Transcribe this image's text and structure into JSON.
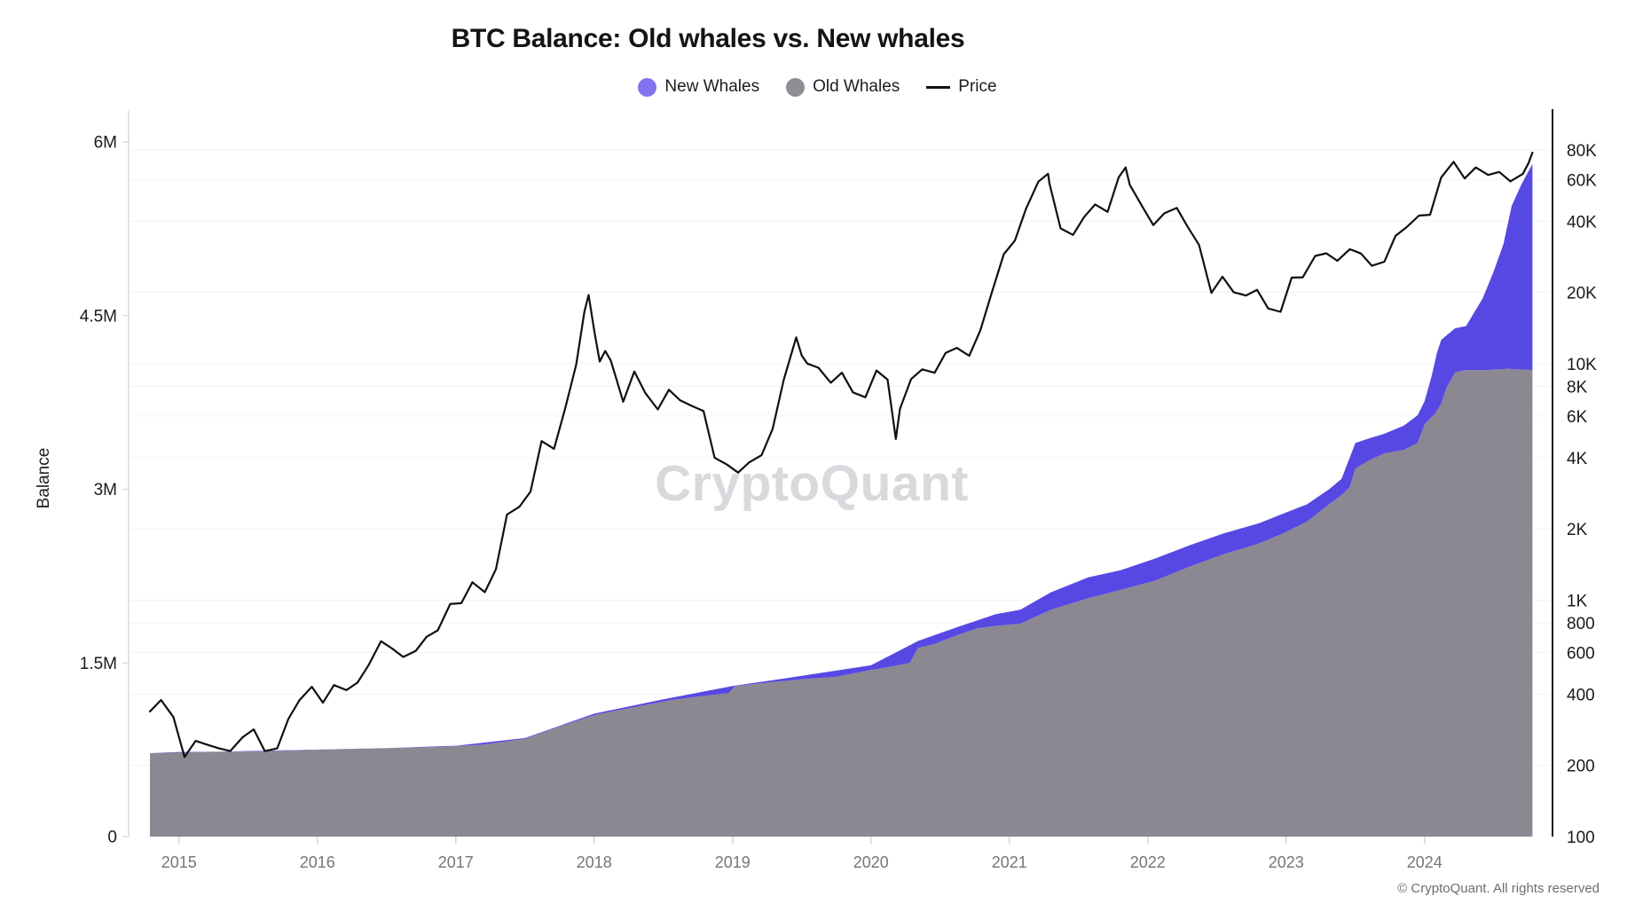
{
  "header": {
    "title": "BTC Balance: Old whales vs. New whales"
  },
  "legend": {
    "items": [
      {
        "label": "New Whales",
        "marker": "dot",
        "color": "#8274ee"
      },
      {
        "label": "Old Whales",
        "marker": "dot",
        "color": "#8f8d96"
      },
      {
        "label": "Price",
        "marker": "line",
        "color": "#0f1014"
      }
    ]
  },
  "watermark": {
    "text": "CryptoQuant"
  },
  "footer": {
    "copyright": "© CryptoQuant. All rights reserved"
  },
  "chart_data": {
    "type": "combo-area-line",
    "title": "BTC Balance: Old whales vs. New whales",
    "left_axis": {
      "label": "Balance",
      "scale": "linear",
      "unit": "BTC",
      "ylim_m": [
        0,
        6
      ],
      "ticks": [
        {
          "value_m": 0,
          "label": "0"
        },
        {
          "value_m": 1.5,
          "label": "1.5M"
        },
        {
          "value_m": 3,
          "label": "3M"
        },
        {
          "value_m": 4.5,
          "label": "4.5M"
        },
        {
          "value_m": 6,
          "label": "6M"
        }
      ]
    },
    "right_axis": {
      "label": "Price",
      "scale": "log",
      "unit": "USD",
      "ylim": [
        100,
        90000
      ],
      "ticks": [
        {
          "value": 80000,
          "label": "80K"
        },
        {
          "value": 60000,
          "label": "60K"
        },
        {
          "value": 40000,
          "label": "40K"
        },
        {
          "value": 20000,
          "label": "20K"
        },
        {
          "value": 10000,
          "label": "10K"
        },
        {
          "value": 8000,
          "label": "8K"
        },
        {
          "value": 6000,
          "label": "6K"
        },
        {
          "value": 4000,
          "label": "4K"
        },
        {
          "value": 2000,
          "label": "2K"
        },
        {
          "value": 1000,
          "label": "1K"
        },
        {
          "value": 800,
          "label": "800"
        },
        {
          "value": 600,
          "label": "600"
        },
        {
          "value": 400,
          "label": "400"
        },
        {
          "value": 200,
          "label": "200"
        },
        {
          "value": 100,
          "label": "100"
        }
      ]
    },
    "x_axis": {
      "range_decimal_years": [
        2014.79,
        2024.78
      ],
      "ticks": [
        {
          "value": 2015,
          "label": "2015"
        },
        {
          "value": 2016,
          "label": "2016"
        },
        {
          "value": 2017,
          "label": "2017"
        },
        {
          "value": 2018,
          "label": "2018"
        },
        {
          "value": 2019,
          "label": "2019"
        },
        {
          "value": 2020,
          "label": "2020"
        },
        {
          "value": 2021,
          "label": "2021"
        },
        {
          "value": 2022,
          "label": "2022"
        },
        {
          "value": 2023,
          "label": "2023"
        },
        {
          "value": 2024,
          "label": "2024"
        }
      ]
    },
    "series": [
      {
        "name": "Old Whales",
        "type": "area",
        "axis": "left",
        "unit": "M BTC",
        "color": "#8b8892",
        "points": [
          [
            2014.79,
            0.72
          ],
          [
            2015.0,
            0.73
          ],
          [
            2015.5,
            0.735
          ],
          [
            2016.0,
            0.75
          ],
          [
            2016.5,
            0.765
          ],
          [
            2016.9,
            0.775
          ],
          [
            2017.2,
            0.795
          ],
          [
            2017.5,
            0.845
          ],
          [
            2017.75,
            0.95
          ],
          [
            2018.0,
            1.05
          ],
          [
            2018.12,
            1.08
          ],
          [
            2018.3,
            1.12
          ],
          [
            2018.56,
            1.18
          ],
          [
            2018.75,
            1.21
          ],
          [
            2018.97,
            1.24
          ],
          [
            2019.02,
            1.3
          ],
          [
            2019.25,
            1.33
          ],
          [
            2019.51,
            1.36
          ],
          [
            2019.75,
            1.38
          ],
          [
            2020.0,
            1.44
          ],
          [
            2020.15,
            1.47
          ],
          [
            2020.28,
            1.5
          ],
          [
            2020.34,
            1.63
          ],
          [
            2020.45,
            1.66
          ],
          [
            2020.6,
            1.73
          ],
          [
            2020.77,
            1.8
          ],
          [
            2020.9,
            1.82
          ],
          [
            2021.08,
            1.84
          ],
          [
            2021.3,
            1.96
          ],
          [
            2021.57,
            2.06
          ],
          [
            2021.8,
            2.13
          ],
          [
            2022.05,
            2.21
          ],
          [
            2022.3,
            2.33
          ],
          [
            2022.55,
            2.44
          ],
          [
            2022.8,
            2.53
          ],
          [
            2022.98,
            2.62
          ],
          [
            2023.15,
            2.72
          ],
          [
            2023.31,
            2.87
          ],
          [
            2023.4,
            2.95
          ],
          [
            2023.46,
            3.02
          ],
          [
            2023.5,
            3.18
          ],
          [
            2023.6,
            3.25
          ],
          [
            2023.71,
            3.31
          ],
          [
            2023.85,
            3.34
          ],
          [
            2023.95,
            3.4
          ],
          [
            2024.0,
            3.56
          ],
          [
            2024.08,
            3.66
          ],
          [
            2024.12,
            3.74
          ],
          [
            2024.16,
            3.88
          ],
          [
            2024.22,
            4.01
          ],
          [
            2024.3,
            4.03
          ],
          [
            2024.45,
            4.03
          ],
          [
            2024.6,
            4.04
          ],
          [
            2024.78,
            4.03
          ]
        ]
      },
      {
        "name": "New Whales",
        "type": "area",
        "axis": "left",
        "unit": "M BTC",
        "stacked_on": "Old Whales",
        "color": "#5748e4",
        "points": [
          [
            2014.79,
            0
          ],
          [
            2016.5,
            0
          ],
          [
            2017.0,
            0.003
          ],
          [
            2017.5,
            0.006
          ],
          [
            2018.0,
            0.012
          ],
          [
            2018.5,
            0.02
          ],
          [
            2019.0,
            0.025
          ],
          [
            2019.5,
            0.03
          ],
          [
            2020.0,
            0.04
          ],
          [
            2020.34,
            0.06
          ],
          [
            2020.6,
            0.07
          ],
          [
            2020.9,
            0.1
          ],
          [
            2021.08,
            0.12
          ],
          [
            2021.3,
            0.15
          ],
          [
            2021.57,
            0.18
          ],
          [
            2021.8,
            0.17
          ],
          [
            2022.05,
            0.19
          ],
          [
            2022.3,
            0.185
          ],
          [
            2022.55,
            0.18
          ],
          [
            2022.8,
            0.175
          ],
          [
            2022.98,
            0.17
          ],
          [
            2023.15,
            0.15
          ],
          [
            2023.31,
            0.13
          ],
          [
            2023.4,
            0.14
          ],
          [
            2023.5,
            0.22
          ],
          [
            2023.6,
            0.19
          ],
          [
            2023.71,
            0.17
          ],
          [
            2023.85,
            0.21
          ],
          [
            2023.95,
            0.24
          ],
          [
            2024.0,
            0.2
          ],
          [
            2024.05,
            0.35
          ],
          [
            2024.09,
            0.5
          ],
          [
            2024.12,
            0.55
          ],
          [
            2024.16,
            0.45
          ],
          [
            2024.22,
            0.38
          ],
          [
            2024.3,
            0.38
          ],
          [
            2024.42,
            0.62
          ],
          [
            2024.5,
            0.85
          ],
          [
            2024.57,
            1.08
          ],
          [
            2024.63,
            1.41
          ],
          [
            2024.7,
            1.6
          ],
          [
            2024.78,
            1.78
          ]
        ]
      },
      {
        "name": "Price",
        "type": "line",
        "axis": "right",
        "unit": "USD",
        "color": "#0f1014",
        "points": [
          [
            2014.79,
            338
          ],
          [
            2014.87,
            378
          ],
          [
            2014.96,
            320
          ],
          [
            2015.04,
            217
          ],
          [
            2015.12,
            254
          ],
          [
            2015.21,
            244
          ],
          [
            2015.29,
            236
          ],
          [
            2015.37,
            230
          ],
          [
            2015.46,
            263
          ],
          [
            2015.54,
            284
          ],
          [
            2015.62,
            230
          ],
          [
            2015.71,
            236
          ],
          [
            2015.79,
            314
          ],
          [
            2015.87,
            377
          ],
          [
            2015.96,
            430
          ],
          [
            2016.04,
            368
          ],
          [
            2016.12,
            437
          ],
          [
            2016.21,
            416
          ],
          [
            2016.29,
            448
          ],
          [
            2016.37,
            531
          ],
          [
            2016.46,
            670
          ],
          [
            2016.54,
            624
          ],
          [
            2016.62,
            575
          ],
          [
            2016.71,
            609
          ],
          [
            2016.79,
            700
          ],
          [
            2016.87,
            745
          ],
          [
            2016.96,
            963
          ],
          [
            2017.04,
            970
          ],
          [
            2017.12,
            1190
          ],
          [
            2017.21,
            1080
          ],
          [
            2017.29,
            1350
          ],
          [
            2017.37,
            2300
          ],
          [
            2017.46,
            2480
          ],
          [
            2017.54,
            2875
          ],
          [
            2017.62,
            4700
          ],
          [
            2017.71,
            4360
          ],
          [
            2017.79,
            6450
          ],
          [
            2017.87,
            9900
          ],
          [
            2017.93,
            16600
          ],
          [
            2017.96,
            19500
          ],
          [
            2018.0,
            13800
          ],
          [
            2018.04,
            10200
          ],
          [
            2018.08,
            11300
          ],
          [
            2018.12,
            10300
          ],
          [
            2018.21,
            6900
          ],
          [
            2018.29,
            9250
          ],
          [
            2018.37,
            7500
          ],
          [
            2018.46,
            6400
          ],
          [
            2018.54,
            7750
          ],
          [
            2018.62,
            7000
          ],
          [
            2018.71,
            6600
          ],
          [
            2018.79,
            6300
          ],
          [
            2018.87,
            4000
          ],
          [
            2018.96,
            3740
          ],
          [
            2019.04,
            3460
          ],
          [
            2019.12,
            3820
          ],
          [
            2019.21,
            4100
          ],
          [
            2019.29,
            5300
          ],
          [
            2019.37,
            8550
          ],
          [
            2019.46,
            12900
          ],
          [
            2019.5,
            10800
          ],
          [
            2019.54,
            10000
          ],
          [
            2019.62,
            9600
          ],
          [
            2019.71,
            8300
          ],
          [
            2019.79,
            9150
          ],
          [
            2019.87,
            7550
          ],
          [
            2019.96,
            7200
          ],
          [
            2020.04,
            9350
          ],
          [
            2020.12,
            8550
          ],
          [
            2020.18,
            4800
          ],
          [
            2020.21,
            6440
          ],
          [
            2020.29,
            8600
          ],
          [
            2020.37,
            9450
          ],
          [
            2020.46,
            9140
          ],
          [
            2020.54,
            11100
          ],
          [
            2020.62,
            11650
          ],
          [
            2020.71,
            10780
          ],
          [
            2020.79,
            13800
          ],
          [
            2020.87,
            19700
          ],
          [
            2020.96,
            29000
          ],
          [
            2021.04,
            33100
          ],
          [
            2021.12,
            45100
          ],
          [
            2021.21,
            58800
          ],
          [
            2021.28,
            63500
          ],
          [
            2021.29,
            57700
          ],
          [
            2021.37,
            37300
          ],
          [
            2021.46,
            35000
          ],
          [
            2021.54,
            41600
          ],
          [
            2021.62,
            47100
          ],
          [
            2021.71,
            43800
          ],
          [
            2021.79,
            61300
          ],
          [
            2021.84,
            67500
          ],
          [
            2021.87,
            57000
          ],
          [
            2021.96,
            46200
          ],
          [
            2022.04,
            38500
          ],
          [
            2022.12,
            43200
          ],
          [
            2022.21,
            45500
          ],
          [
            2022.29,
            37700
          ],
          [
            2022.37,
            31800
          ],
          [
            2022.46,
            19900
          ],
          [
            2022.54,
            23300
          ],
          [
            2022.62,
            20050
          ],
          [
            2022.71,
            19400
          ],
          [
            2022.79,
            20500
          ],
          [
            2022.87,
            17100
          ],
          [
            2022.96,
            16550
          ],
          [
            2023.04,
            23100
          ],
          [
            2023.12,
            23150
          ],
          [
            2023.21,
            28500
          ],
          [
            2023.29,
            29250
          ],
          [
            2023.37,
            27200
          ],
          [
            2023.46,
            30450
          ],
          [
            2023.54,
            29200
          ],
          [
            2023.62,
            25900
          ],
          [
            2023.71,
            26950
          ],
          [
            2023.79,
            34650
          ],
          [
            2023.87,
            37700
          ],
          [
            2023.96,
            42250
          ],
          [
            2024.04,
            42550
          ],
          [
            2024.12,
            61200
          ],
          [
            2024.21,
            71300
          ],
          [
            2024.29,
            60600
          ],
          [
            2024.37,
            67500
          ],
          [
            2024.46,
            62700
          ],
          [
            2024.54,
            64600
          ],
          [
            2024.62,
            58950
          ],
          [
            2024.71,
            63300
          ],
          [
            2024.75,
            70200
          ],
          [
            2024.78,
            78000
          ]
        ]
      }
    ],
    "style": {
      "grid": true,
      "grid_color": "#f3f3f5",
      "left_axis_line_color": "#dcdce0",
      "right_axis_line_color": "#17171c",
      "x_tick_color": "#d4d4d9",
      "tick_label_color": "#1a1a1f",
      "year_label_color": "#75757b",
      "legend_position": "top-center"
    }
  }
}
